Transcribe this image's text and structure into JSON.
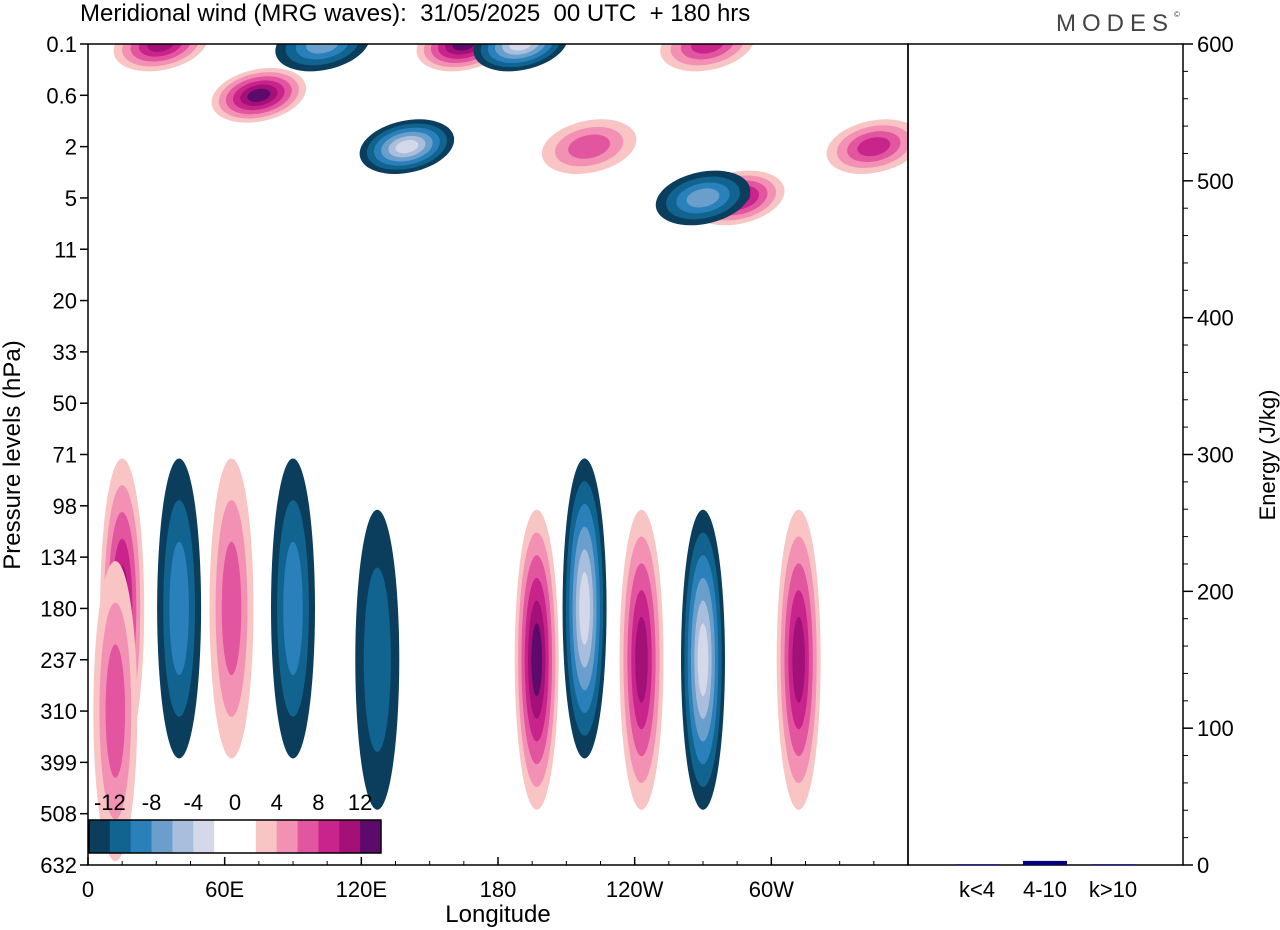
{
  "title": "Meridional wind (MRG waves):  31/05/2025  00 UTC  + 180 hrs",
  "brand": "MODES",
  "brand_mark": "©",
  "colors": {
    "neg": [
      "#0b3d5c",
      "#10648f",
      "#2a80ba",
      "#6a9fcb",
      "#a9bedc",
      "#d4d8e9"
    ],
    "zero": "#ffffff",
    "pos": [
      "#f8c4c4",
      "#f391b5",
      "#e2559f",
      "#c9248c",
      "#a31078",
      "#5c0a6b"
    ]
  },
  "chart_data": [
    {
      "type": "heatmap",
      "title": "Meridional wind (MRG waves):  31/05/2025  00 UTC  + 180 hrs",
      "xlabel": "Longitude",
      "ylabel": "Pressure levels (hPa)",
      "x_ticks": [
        "0",
        "60E",
        "120E",
        "180",
        "120W",
        "60W"
      ],
      "x_range_deg_east": [
        0,
        360
      ],
      "y_levels_hpa": [
        "0.1",
        "0.6",
        "2",
        "5",
        "11",
        "20",
        "33",
        "50",
        "71",
        "98",
        "134",
        "180",
        "237",
        "310",
        "399",
        "508",
        "632"
      ],
      "colorbar": {
        "labels": [
          "-12",
          "-8",
          "-4",
          "0",
          "4",
          "8",
          "12"
        ],
        "levels": [
          -14,
          -12,
          -10,
          -8,
          -6,
          -4,
          -2,
          0,
          2,
          4,
          6,
          8,
          10,
          12,
          14
        ]
      },
      "features": [
        {
          "lon": 15,
          "level": "180",
          "value": 9
        },
        {
          "lon": 12,
          "level": "310",
          "value": 6
        },
        {
          "lon": 40,
          "level": "180",
          "value": -5
        },
        {
          "lon": 63,
          "level": "180",
          "value": 5
        },
        {
          "lon": 90,
          "level": "180",
          "value": -6
        },
        {
          "lon": 127,
          "level": "237",
          "value": -4
        },
        {
          "lon": 197,
          "level": "237",
          "value": 11
        },
        {
          "lon": 218,
          "level": "180",
          "value": -14
        },
        {
          "lon": 243,
          "level": "237",
          "value": 10
        },
        {
          "lon": 270,
          "level": "237",
          "value": -12
        },
        {
          "lon": 312,
          "level": "237",
          "value": 9
        },
        {
          "lon": 32,
          "level": "0.1",
          "value": 10
        },
        {
          "lon": 75,
          "level": "0.6",
          "value": 12
        },
        {
          "lon": 103,
          "level": "0.1",
          "value": -8
        },
        {
          "lon": 165,
          "level": "0.1",
          "value": 13
        },
        {
          "lon": 190,
          "level": "0.1",
          "value": -14
        },
        {
          "lon": 140,
          "level": "2",
          "value": -12
        },
        {
          "lon": 272,
          "level": "0.1",
          "value": 8
        },
        {
          "lon": 285,
          "level": "5",
          "value": 10
        },
        {
          "lon": 270,
          "level": "5",
          "value": -8
        },
        {
          "lon": 345,
          "level": "2",
          "value": 8
        },
        {
          "lon": 220,
          "level": "2",
          "value": 5
        }
      ]
    },
    {
      "type": "bar",
      "categories": [
        "k<4",
        "4-10",
        "k>10"
      ],
      "values": [
        0.5,
        3,
        0.5
      ],
      "ylabel": "Energy (J/kg)",
      "ylim": [
        0,
        600
      ],
      "y_ticks": [
        "0",
        "100",
        "200",
        "300",
        "400",
        "500",
        "600"
      ],
      "bar_color": "#000080"
    }
  ]
}
